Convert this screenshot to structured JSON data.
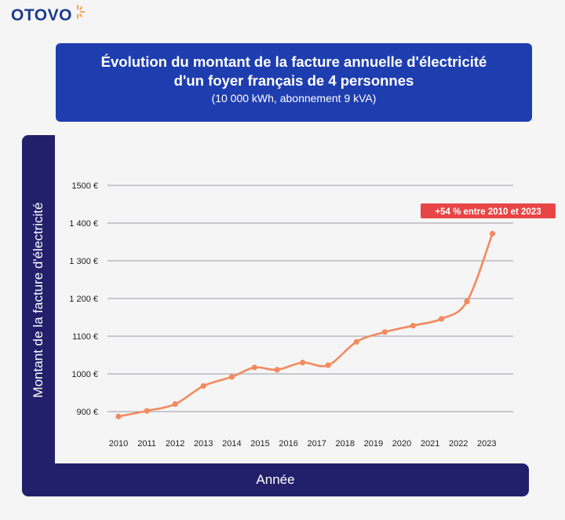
{
  "brand": {
    "name": "OTOVO",
    "accent": "#f7a04b",
    "color": "#1a3b8f"
  },
  "header": {
    "title_line1": "Évolution du montant de la facture annuelle d'électricité",
    "title_line2": "d'un foyer français de 4 personnes",
    "subtitle": "(10 000 kWh, abonnement 9 kVA)",
    "background": "#1e3eb0"
  },
  "frame_color": "#22206b",
  "chart_data": {
    "type": "line",
    "title": "Évolution du montant de la facture annuelle d'électricité d'un foyer français de 4 personnes",
    "subtitle": "(10 000 kWh, abonnement 9 kVA)",
    "xlabel": "Année",
    "ylabel": "Montant de la facture d'électricité",
    "x_ticks": [
      "2010",
      "2011",
      "2012",
      "2013",
      "2014",
      "2015",
      "2016",
      "2017",
      "2018",
      "2019",
      "2020",
      "2021",
      "2022",
      "2023"
    ],
    "y_ticks": [
      {
        "value": 900,
        "label": "900 €"
      },
      {
        "value": 1000,
        "label": "1000 €"
      },
      {
        "value": 1100,
        "label": "1100 €"
      },
      {
        "value": 1200,
        "label": "1 200 €"
      },
      {
        "value": 1300,
        "label": "1 300 €"
      },
      {
        "value": 1400,
        "label": "1 400 €"
      },
      {
        "value": 1500,
        "label": "1500 €"
      }
    ],
    "ylim": [
      900,
      1500
    ],
    "grid": true,
    "line_color": "#f28a5e",
    "x": [
      2010,
      2011,
      2012,
      2013,
      2014,
      2014.8,
      2015.6,
      2016.5,
      2017.4,
      2018.4,
      2019.4,
      2020.4,
      2021.4,
      2022.3,
      2023.2
    ],
    "values": [
      887,
      902,
      920,
      968,
      992,
      1017,
      1011,
      1030,
      1023,
      1085,
      1111,
      1128,
      1146,
      1192,
      1372
    ],
    "annotation": {
      "text": "+54 % entre 2010 et 2023",
      "color": "#e84646"
    }
  }
}
